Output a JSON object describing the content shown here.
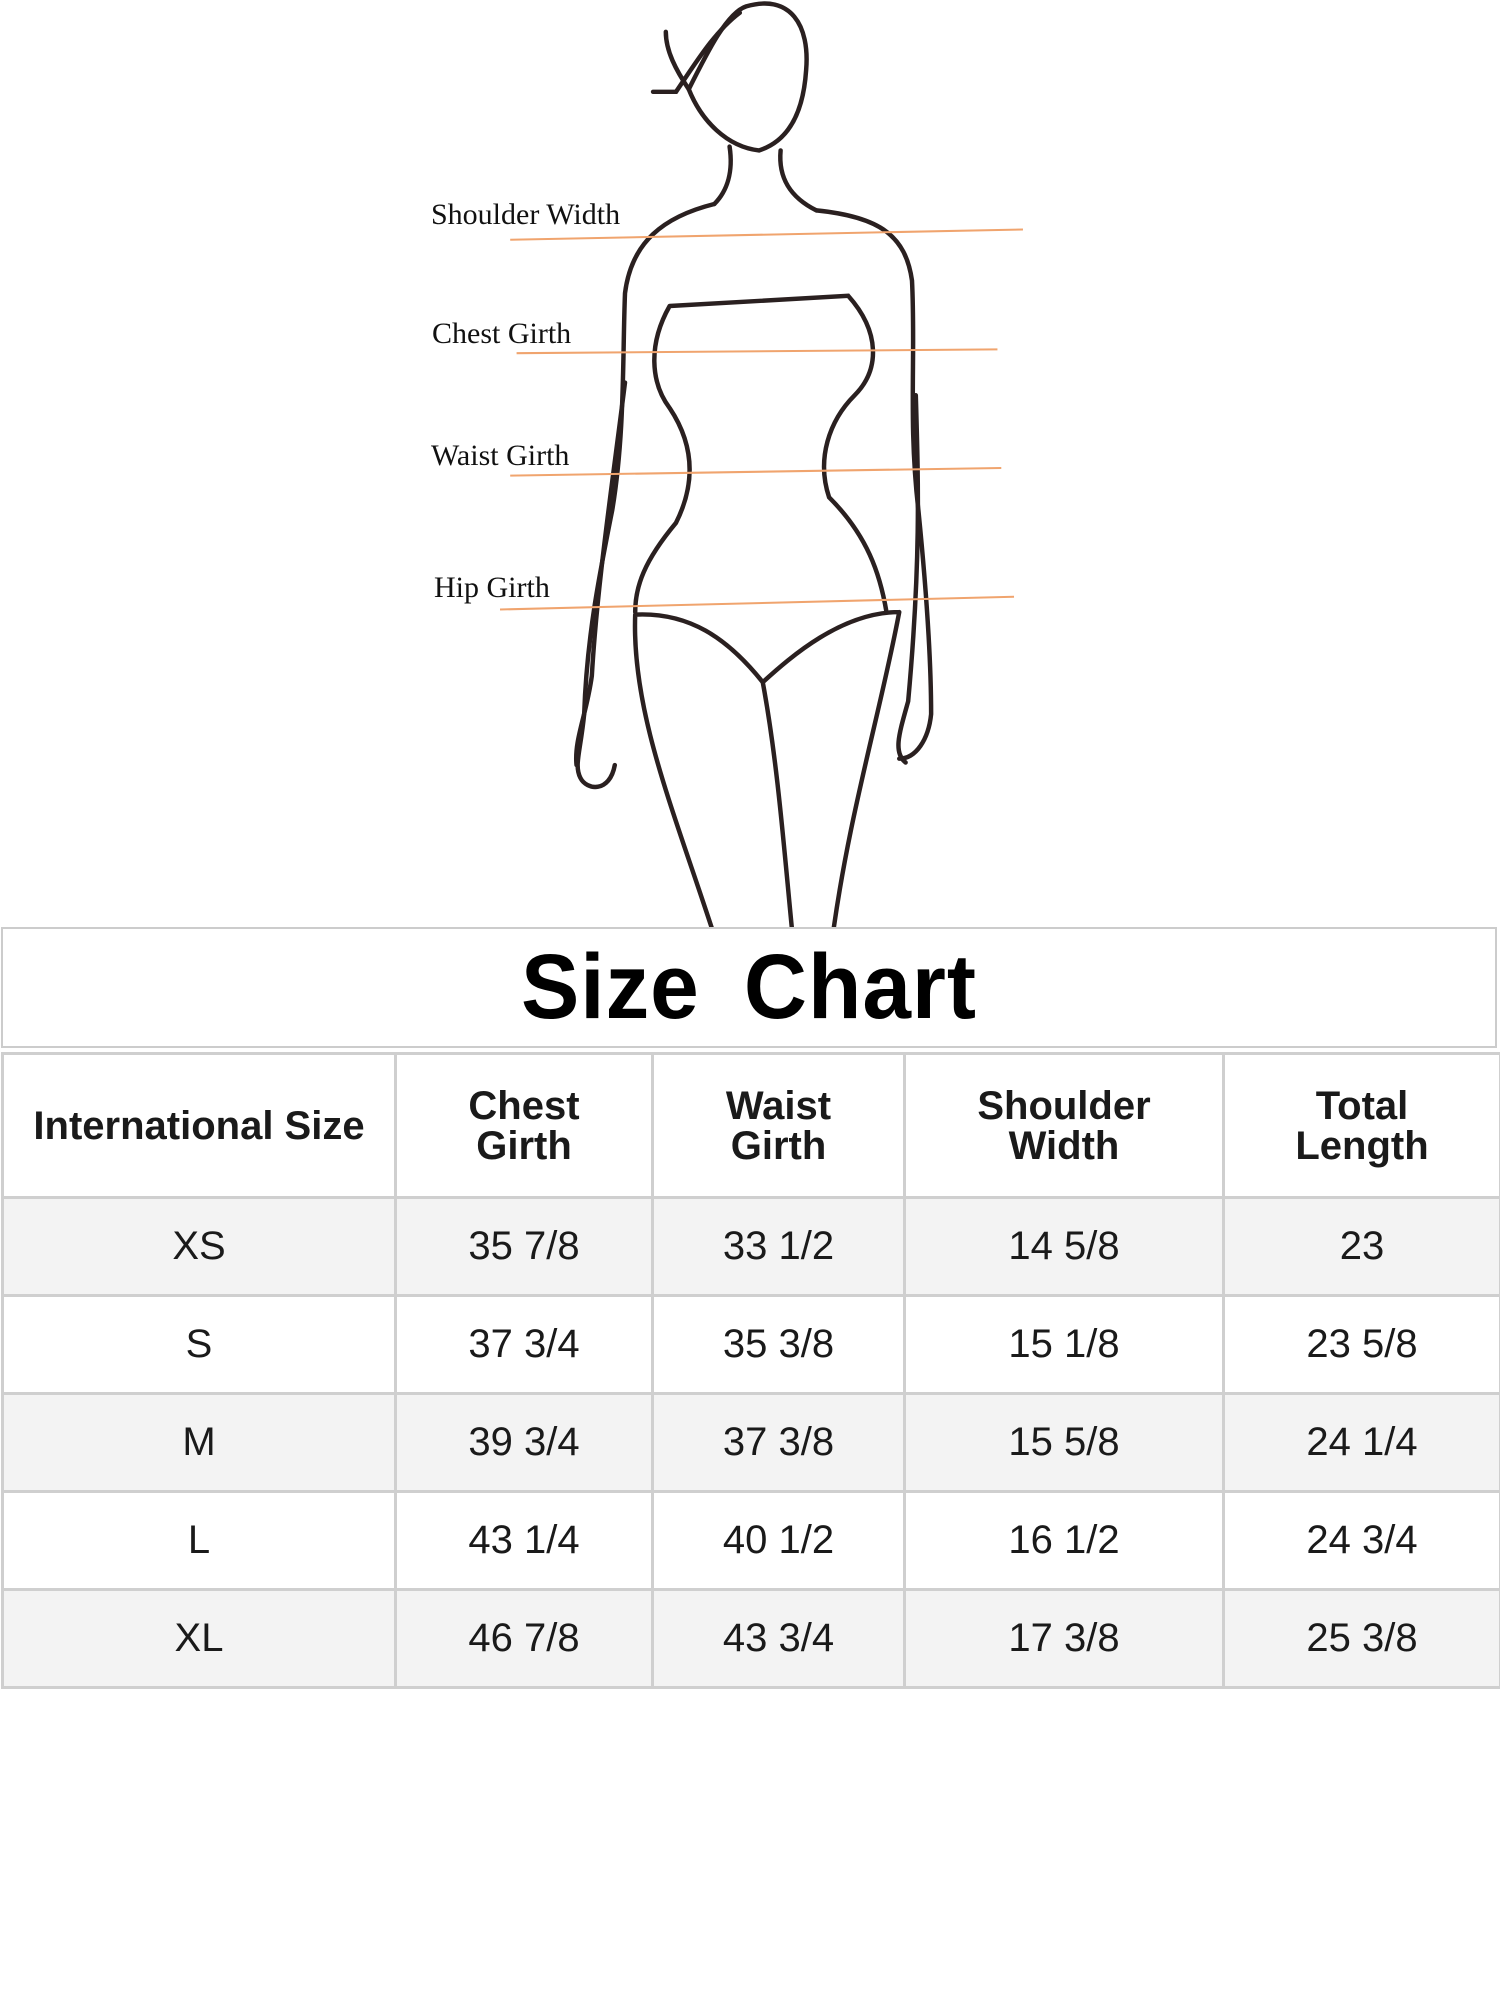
{
  "figure": {
    "labels": [
      "Shoulder Width",
      "Chest Girth",
      "Waist Girth",
      "Hip Girth"
    ],
    "line_color": "#f0a46e"
  },
  "title": "Size  Chart",
  "table": {
    "headers": [
      "International Size",
      "Chest Girth",
      "Waist Girth",
      "Shoulder Width",
      "Total Length"
    ],
    "rows": [
      [
        "XS",
        "35 7/8",
        "33 1/2",
        "14 5/8",
        "23"
      ],
      [
        "S",
        "37 3/4",
        "35 3/8",
        "15 1/8",
        "23 5/8"
      ],
      [
        "M",
        "39 3/4",
        "37 3/8",
        "15 5/8",
        "24 1/4"
      ],
      [
        "L",
        "43 1/4",
        "40 1/2",
        "16 1/2",
        "24 3/4"
      ],
      [
        "XL",
        "46 7/8",
        "43 3/4",
        "17 3/8",
        "25 3/8"
      ]
    ]
  }
}
